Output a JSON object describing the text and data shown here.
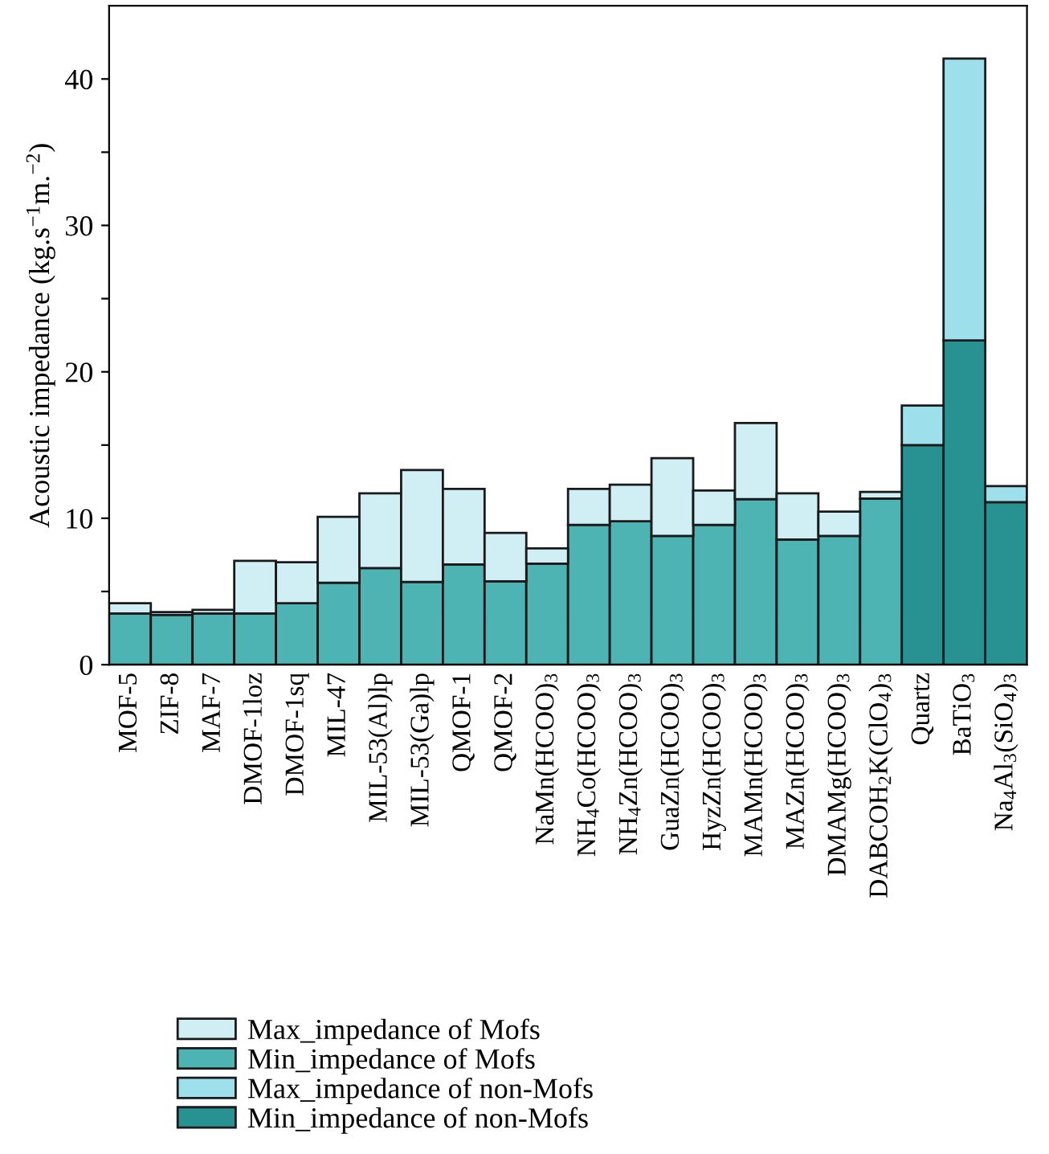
{
  "chart_data": {
    "type": "bar",
    "stacked": true,
    "ylabel": "Acoustic impedance (kg.s$^{−1}$m.$^{−2}$)",
    "categories": [
      "MOF-5",
      "ZIF-8",
      "MAF-7",
      "DMOF-1loz",
      "DMOF-1sq",
      "MIL-47",
      "MIL-53(Al)lp",
      "MIL-53(Ga)lp",
      "QMOF-1",
      "QMOF-2",
      "NaMn(HCOO)$_{3}$",
      "NH$_{4}$Co(HCOO)$_{3}$",
      "NH$_{4}$Zn(HCOO)$_{3}$",
      "GuaZn(HCOO)$_{3}$",
      "HyzZn(HCOO)$_{3}$",
      "MAMn(HCOO)$_{3}$",
      "MAZn(HCOO)$_{3}$",
      "DMAMg(HCOO)$_{3}$",
      "DABCOH$_{2}$K(ClO$_{4}$)$_{3}$",
      "Quartz",
      "BaTiO$_{3}$",
      "Na$_{4}$Al$_{3}$(SiO$_{4}$)$_{3}$"
    ],
    "series": [
      {
        "name": "Min_impedance of Mofs",
        "color": "#4db3b3",
        "values": [
          3.5,
          3.4,
          3.5,
          3.5,
          4.2,
          5.6,
          6.6,
          5.65,
          6.85,
          5.7,
          6.9,
          9.55,
          9.8,
          8.8,
          9.55,
          11.3,
          8.55,
          8.8,
          11.35,
          null,
          null,
          null
        ]
      },
      {
        "name": "Max_impedance of Mofs",
        "color": "#d0eff5",
        "values": [
          0.7,
          0.2,
          0.25,
          3.6,
          2.8,
          4.5,
          5.1,
          7.65,
          5.15,
          3.3,
          1.05,
          2.45,
          2.5,
          5.3,
          2.35,
          5.2,
          3.15,
          1.65,
          0.45,
          null,
          null,
          null
        ]
      },
      {
        "name": "Min_impedance of non-Mofs",
        "color": "#289292",
        "values": [
          null,
          null,
          null,
          null,
          null,
          null,
          null,
          null,
          null,
          null,
          null,
          null,
          null,
          null,
          null,
          null,
          null,
          null,
          null,
          15.0,
          22.15,
          11.1
        ]
      },
      {
        "name": "Max_impedance of non-Mofs",
        "color": "#9ddfeb",
        "values": [
          null,
          null,
          null,
          null,
          null,
          null,
          null,
          null,
          null,
          null,
          null,
          null,
          null,
          null,
          null,
          null,
          null,
          null,
          null,
          2.7,
          19.25,
          1.1
        ]
      }
    ],
    "ylim": [
      0,
      45
    ],
    "yticks": [
      0,
      {
        "value": 5,
        "label": null
      },
      10,
      {
        "value": 15,
        "label": null
      },
      20,
      {
        "value": 25,
        "label": null
      },
      30,
      {
        "value": 35,
        "label": null
      },
      40
    ],
    "legend": "bottom"
  }
}
